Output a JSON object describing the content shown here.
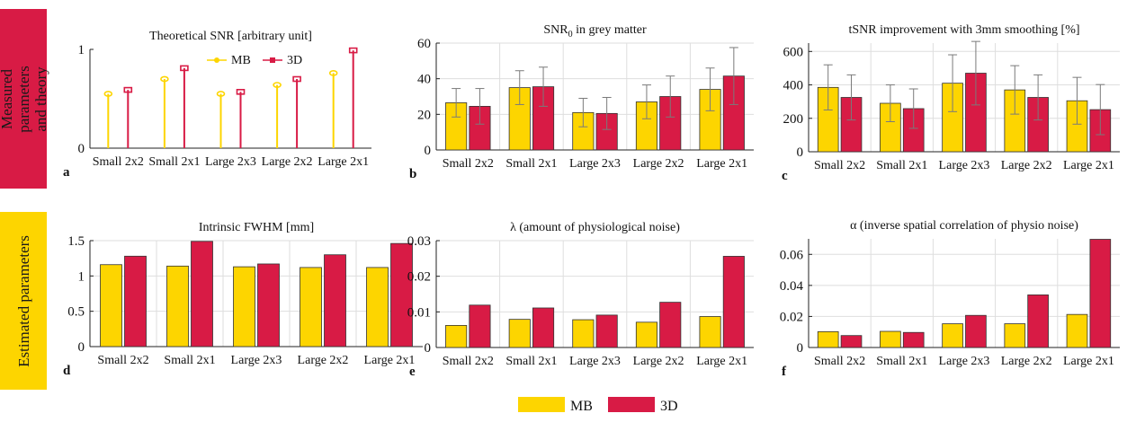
{
  "side_labels": {
    "top": "Measured parameters and theory",
    "bottom": "Estimated parameters"
  },
  "legend": {
    "mb": "MB",
    "threed": "3D"
  },
  "colors": {
    "mb": "#fdd500",
    "threed": "#d81b45",
    "grid": "#dedede",
    "error": "#7a7a7a"
  },
  "chart_data": [
    {
      "letter": "a",
      "type": "stem",
      "title": "Theoretical SNR [arbitrary unit]",
      "categories": [
        "Small 2x2",
        "Small 2x1",
        "Large 2x3",
        "Large 2x2",
        "Large 2x1"
      ],
      "series": [
        {
          "name": "MB",
          "values": [
            0.55,
            0.7,
            0.55,
            0.64,
            0.76
          ]
        },
        {
          "name": "3D",
          "values": [
            0.59,
            0.81,
            0.57,
            0.7,
            0.99
          ]
        }
      ],
      "ylim": [
        0,
        1
      ],
      "yticks": [
        0,
        1
      ],
      "yticklabels": [
        "0",
        "1"
      ],
      "grid": false,
      "legend": "inside-top"
    },
    {
      "letter": "b",
      "type": "bar",
      "title": "SNR in grey matter",
      "title_main": "SNR",
      "title_sub": "0",
      "title_rest": " in grey matter",
      "categories": [
        "Small 2x2",
        "Small 2x1",
        "Large 2x3",
        "Large 2x2",
        "Large 2x1"
      ],
      "series": [
        {
          "name": "MB",
          "values": [
            26.5,
            35,
            21,
            27,
            34
          ],
          "errors": [
            8,
            9.5,
            8,
            9.5,
            12
          ]
        },
        {
          "name": "3D",
          "values": [
            24.5,
            35.5,
            20.5,
            30,
            41.5
          ],
          "errors": [
            10,
            11,
            9,
            11.5,
            16
          ]
        }
      ],
      "ylim": [
        0,
        60
      ],
      "yticks": [
        0,
        20,
        40,
        60
      ],
      "yticklabels": [
        "0",
        "20",
        "40",
        "60"
      ],
      "grid": true
    },
    {
      "letter": "c",
      "type": "bar",
      "title": "tSNR improvement with 3mm smoothing [%]",
      "categories": [
        "Small 2x2",
        "Small 2x1",
        "Large 2x3",
        "Large 2x2",
        "Large 2x1"
      ],
      "series": [
        {
          "name": "MB",
          "values": [
            385,
            290,
            410,
            370,
            305
          ],
          "errors": [
            135,
            110,
            170,
            145,
            140
          ]
        },
        {
          "name": "3D",
          "values": [
            325,
            258,
            470,
            325,
            252
          ],
          "errors": [
            135,
            118,
            190,
            135,
            150
          ]
        }
      ],
      "ylim": [
        0,
        650
      ],
      "yticks": [
        0,
        200,
        400,
        600
      ],
      "yticklabels": [
        "0",
        "200",
        "400",
        "600"
      ],
      "grid": true
    },
    {
      "letter": "d",
      "type": "bar",
      "title": "Intrinsic FWHM [mm]",
      "categories": [
        "Small 2x2",
        "Small 2x1",
        "Large 2x3",
        "Large 2x2",
        "Large 2x1"
      ],
      "series": [
        {
          "name": "MB",
          "values": [
            1.16,
            1.14,
            1.13,
            1.12,
            1.12
          ]
        },
        {
          "name": "3D",
          "values": [
            1.28,
            1.49,
            1.17,
            1.3,
            1.46
          ]
        }
      ],
      "ylim": [
        0,
        1.5
      ],
      "yticks": [
        0,
        0.5,
        1,
        1.5
      ],
      "yticklabels": [
        "0",
        "0.5",
        "1",
        "1.5"
      ],
      "grid": true
    },
    {
      "letter": "e",
      "type": "bar",
      "title": "λ (amount of physiological noise)",
      "categories": [
        "Small 2x2",
        "Small 2x1",
        "Large 2x3",
        "Large 2x2",
        "Large 2x1"
      ],
      "series": [
        {
          "name": "MB",
          "values": [
            0.0062,
            0.0079,
            0.0078,
            0.0071,
            0.0087
          ]
        },
        {
          "name": "3D",
          "values": [
            0.0119,
            0.0111,
            0.0091,
            0.0127,
            0.0256
          ]
        }
      ],
      "ylim": [
        0,
        0.03
      ],
      "yticks": [
        0,
        0.01,
        0.02,
        0.03
      ],
      "yticklabels": [
        "0",
        "0.01",
        "0.02",
        "0.03"
      ],
      "grid": true
    },
    {
      "letter": "f",
      "type": "bar",
      "title": "α (inverse spatial correlation of physio noise)",
      "categories": [
        "Small 2x2",
        "Small 2x1",
        "Large 2x3",
        "Large 2x2",
        "Large 2x1"
      ],
      "series": [
        {
          "name": "MB",
          "values": [
            0.0102,
            0.0104,
            0.0153,
            0.0153,
            0.0213
          ]
        },
        {
          "name": "3D",
          "values": [
            0.0077,
            0.0097,
            0.0207,
            0.0339,
            0.0697
          ]
        }
      ],
      "ylim": [
        0,
        0.07
      ],
      "yticks": [
        0,
        0.02,
        0.04,
        0.06
      ],
      "yticklabels": [
        "0",
        "0.02",
        "0.04",
        "0.06"
      ],
      "grid": true
    }
  ]
}
